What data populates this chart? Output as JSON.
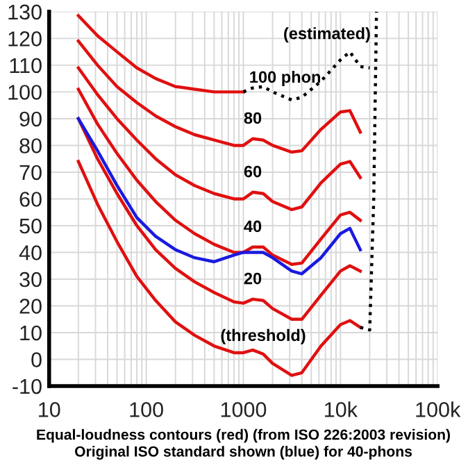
{
  "chart_data": {
    "type": "line",
    "xlabel": "Equal-loudness contours (red) (from ISO 226:2003 revision)\nOriginal ISO standard shown (blue) for 40-phons",
    "log": "x",
    "xlim": [
      10,
      100000
    ],
    "xticks": [
      10,
      100,
      1000,
      {
        "value": 10000,
        "label": "10k"
      },
      {
        "value": 100000,
        "label": "100k"
      }
    ],
    "ylim": [
      -10,
      130
    ],
    "yticks": [
      -10,
      0,
      10,
      20,
      30,
      40,
      50,
      60,
      70,
      80,
      90,
      100,
      110,
      120,
      130
    ],
    "grid": true,
    "marker": "none",
    "series": [
      {
        "name": "(threshold)",
        "color": "#e01010",
        "line_style": "solid",
        "x": [
          20,
          31.5,
          50,
          80,
          125,
          200,
          315,
          500,
          800,
          1000,
          1250,
          1600,
          2000,
          3150,
          4000,
          6300,
          10000,
          12500,
          16000
        ],
        "values": [
          74,
          58,
          44,
          31,
          22,
          14,
          9,
          5,
          2.5,
          2.5,
          3.5,
          2,
          -1.5,
          -6,
          -5,
          5,
          13,
          14.5,
          12
        ]
      },
      {
        "name": "20",
        "color": "#e01010",
        "line_style": "solid",
        "x": [
          20,
          31.5,
          50,
          80,
          125,
          200,
          315,
          500,
          800,
          1000,
          1250,
          1600,
          2000,
          3150,
          4000,
          6300,
          10000,
          12500,
          16000
        ],
        "values": [
          90,
          75,
          62,
          50,
          41,
          34,
          29,
          25,
          21.5,
          21,
          22.5,
          22,
          19,
          15,
          15,
          24,
          33,
          35,
          33
        ]
      },
      {
        "name": "40",
        "color": "#e01010",
        "line_style": "solid",
        "x": [
          20,
          31.5,
          50,
          80,
          125,
          200,
          315,
          500,
          800,
          1000,
          1250,
          1600,
          2000,
          3150,
          4000,
          6300,
          10000,
          12500,
          16000
        ],
        "values": [
          101,
          88,
          77,
          67,
          59,
          52,
          47,
          43,
          40,
          40,
          42,
          42,
          39,
          35.5,
          36,
          45,
          54,
          55,
          52
        ]
      },
      {
        "name": "60",
        "color": "#e01010",
        "line_style": "solid",
        "x": [
          20,
          31.5,
          50,
          80,
          125,
          200,
          315,
          500,
          800,
          1000,
          1250,
          1600,
          2000,
          3150,
          4000,
          6300,
          10000,
          12500,
          16000
        ],
        "values": [
          109,
          99,
          90,
          82,
          75,
          69,
          65,
          62,
          60,
          60,
          62.5,
          62,
          59,
          56,
          57,
          66,
          73,
          74,
          68
        ]
      },
      {
        "name": "80",
        "color": "#e01010",
        "line_style": "solid",
        "x": [
          20,
          31.5,
          50,
          80,
          125,
          200,
          315,
          500,
          800,
          1000,
          1250,
          1600,
          2000,
          3150,
          4000,
          6300,
          10000,
          12500,
          16000
        ],
        "values": [
          119,
          110,
          102,
          96,
          91,
          87,
          84,
          82,
          80,
          80,
          82.5,
          82,
          80,
          77.5,
          78,
          86,
          92.5,
          93,
          85
        ]
      },
      {
        "name": "100 phon",
        "color": "#e01010",
        "line_style": "solid",
        "x": [
          20,
          31.5,
          50,
          80,
          125,
          200,
          315,
          500,
          800,
          1000
        ],
        "values": [
          128.5,
          121,
          115,
          109,
          105,
          102,
          101,
          100,
          100,
          100
        ]
      },
      {
        "color": "#000000",
        "line_style": "dotted",
        "x": [
          1000,
          1250,
          1600,
          2000,
          3150,
          4000,
          6300,
          10000,
          12500,
          16000,
          20000
        ],
        "values": [
          100,
          101.5,
          102,
          100,
          97,
          98,
          104,
          112,
          115,
          109.5,
          109
        ]
      },
      {
        "name": "(estimated)",
        "color": "#000000",
        "line_style": "dotted",
        "x": [
          16000,
          20000,
          22000,
          23500
        ],
        "values": [
          12,
          11,
          60,
          130
        ]
      },
      {
        "color": "#1a1ae0",
        "line_style": "solid",
        "x": [
          20,
          31.5,
          50,
          80,
          125,
          200,
          315,
          500,
          800,
          1000,
          1600,
          2000,
          3150,
          4000,
          6300,
          10000,
          12500,
          16000
        ],
        "values": [
          90,
          78,
          65,
          53,
          46,
          41,
          38,
          36.5,
          39,
          40,
          40,
          38,
          33,
          32,
          38,
          47,
          49,
          41
        ]
      }
    ]
  }
}
